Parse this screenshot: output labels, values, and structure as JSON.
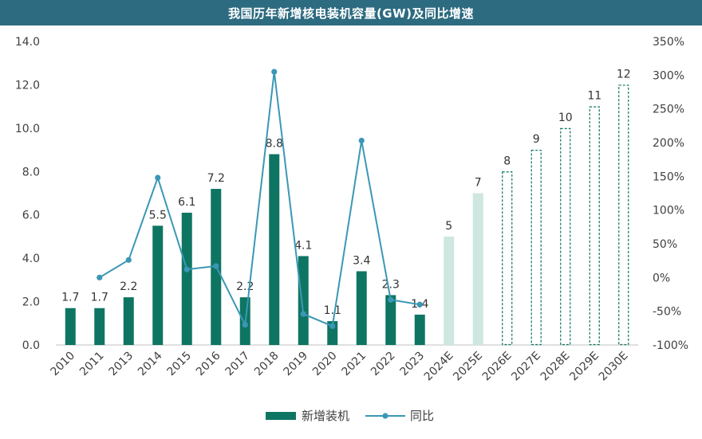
{
  "chart_data": {
    "type": "bar",
    "title": "我国历年新增核电装机容量(GW)及同比增速",
    "categories": [
      "2010",
      "2011",
      "2013",
      "2014",
      "2015",
      "2016",
      "2017",
      "2018",
      "2019",
      "2020",
      "2021",
      "2022",
      "2023",
      "2024E",
      "2025E",
      "2026E",
      "2027E",
      "2028E",
      "2029E",
      "2030E"
    ],
    "series": [
      {
        "name": "新增装机",
        "type": "bar",
        "axis": "left",
        "values": [
          1.7,
          1.7,
          2.2,
          5.5,
          6.1,
          7.2,
          2.2,
          8.8,
          4.1,
          1.1,
          3.4,
          2.3,
          1.4,
          5,
          7,
          8,
          9,
          10,
          11,
          12
        ],
        "data_labels": [
          "1.7",
          "1.7",
          "2.2",
          "5.5",
          "6.1",
          "7.2",
          "2.2",
          "8.8",
          "4.1",
          "1.1",
          "3.4",
          "2.3",
          "1.4",
          "5",
          "7",
          "8",
          "9",
          "10",
          "11",
          "12"
        ],
        "bar_styles": [
          "solid",
          "solid",
          "solid",
          "solid",
          "solid",
          "solid",
          "solid",
          "solid",
          "solid",
          "solid",
          "solid",
          "solid",
          "solid",
          "light",
          "light",
          "dashed",
          "dashed",
          "dashed",
          "dashed",
          "dashed"
        ]
      },
      {
        "name": "同比",
        "type": "line",
        "axis": "right",
        "values": [
          null,
          0,
          26,
          148,
          12,
          17,
          -70,
          305,
          -54,
          -72,
          203,
          -33,
          -40,
          null,
          null,
          null,
          null,
          null,
          null,
          null
        ]
      }
    ],
    "ylim": [
      0,
      14
    ],
    "y_ticks": [
      "0.0",
      "2.0",
      "4.0",
      "6.0",
      "8.0",
      "10.0",
      "12.0",
      "14.0"
    ],
    "y2lim": [
      -100,
      350
    ],
    "y2_ticks": [
      "-100%",
      "-50%",
      "0%",
      "50%",
      "100%",
      "150%",
      "200%",
      "250%",
      "300%",
      "350%"
    ],
    "legend_position": "bottom",
    "grid": false,
    "colors": {
      "bar_solid": "#0e7563",
      "bar_light": "#cfe6e1",
      "bar_dashed_stroke": "#0e7563",
      "line": "#3b97b5",
      "title_bg": "#2d6b80"
    }
  }
}
